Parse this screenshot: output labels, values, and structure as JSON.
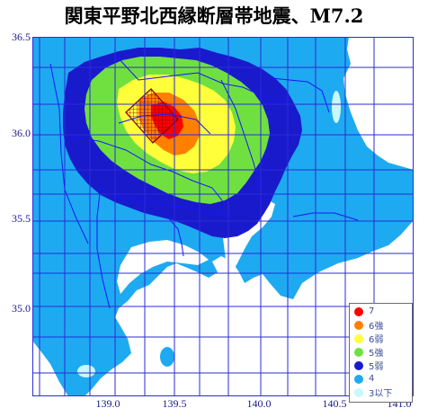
{
  "title": "関東平野北西縁断層帯地震、M7.2",
  "axes": {
    "lat_labels": [
      "36.5",
      "36.0",
      "35.5",
      "35.0"
    ],
    "lon_labels": [
      "139.0",
      "139.5",
      "140.0",
      "140.5",
      "141.0"
    ]
  },
  "colors": {
    "sea": "#ffffff",
    "border": "#1515ff",
    "grid": "#2b2bd9",
    "intensity_7": "#ff0000",
    "intensity_6_strong": "#ff8000",
    "intensity_6_weak": "#ffff3a",
    "intensity_5_strong": "#70e040",
    "intensity_5_weak": "#1a1acd",
    "intensity_4": "#1eaaf0",
    "intensity_3_or_less": "#c8f8f8",
    "fault": "#8b0000"
  },
  "legend": [
    {
      "label": "7",
      "color": "#ff0000"
    },
    {
      "label": "6強",
      "color": "#ff8000"
    },
    {
      "label": "6弱",
      "color": "#ffff3a"
    },
    {
      "label": "5強",
      "color": "#70e040"
    },
    {
      "label": "5弱",
      "color": "#1a1acd"
    },
    {
      "label": "4",
      "color": "#1eaaf0"
    },
    {
      "label": "3以下",
      "color": "#c8f8f8"
    }
  ]
}
